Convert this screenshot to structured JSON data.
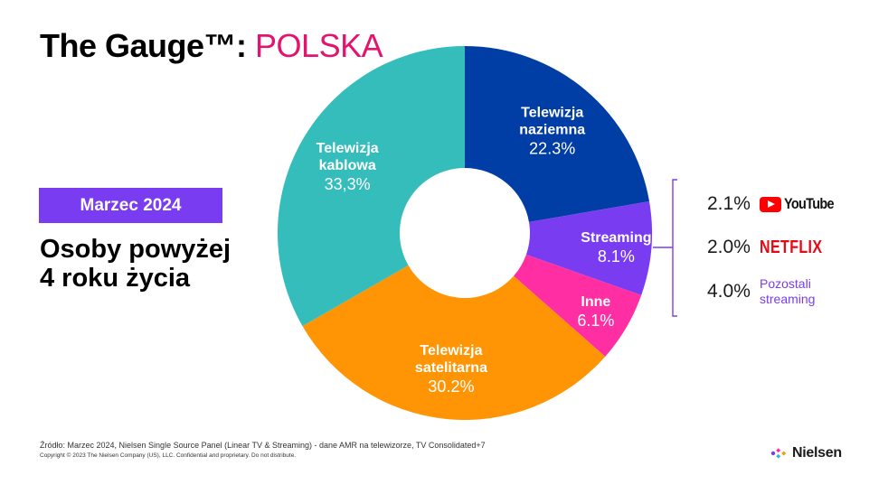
{
  "header": {
    "title_prefix": "The Gauge™:",
    "title_accent": "POLSKA"
  },
  "badge": {
    "label": "Marzec 2024"
  },
  "audience": {
    "line1": "Osoby powyżej",
    "line2": "4 roku życia"
  },
  "chart_data": {
    "type": "pie",
    "donut": true,
    "slices": [
      {
        "name_lines": [
          "Telewizja",
          "naziemna"
        ],
        "value": 22.3,
        "label": "22.3%",
        "color": "#003da5"
      },
      {
        "name_lines": [
          "Streaming"
        ],
        "value": 8.1,
        "label": "8.1%",
        "color": "#7a3cf0"
      },
      {
        "name_lines": [
          "Inne"
        ],
        "value": 6.1,
        "label": "6.1%",
        "color": "#ff2fa3"
      },
      {
        "name_lines": [
          "Telewizja",
          "satelitarna"
        ],
        "value": 30.2,
        "label": "30.2%",
        "color": "#ff9505"
      },
      {
        "name_lines": [
          "Telewizja",
          "kablowa"
        ],
        "value": 33.3,
        "label": "33,3%",
        "color": "#35bdbc"
      }
    ],
    "streaming_breakdown": [
      {
        "value": 2.1,
        "label": "2.1%",
        "brand": "YouTube",
        "brand_icon": "youtube-logo"
      },
      {
        "value": 2.0,
        "label": "2.0%",
        "brand": "NETFLIX",
        "brand_icon": "netflix-logo"
      },
      {
        "value": 4.0,
        "label": "4.0%",
        "brand": "Pozostali streaming",
        "brand_icon": ""
      }
    ]
  },
  "footer": {
    "source": "Źródło: Marzec 2024, Nielsen Single Source Panel (Linear TV & Streaming) - dane AMR na telewizorze, TV Consolidated+7",
    "copyright": "Copyright © 2023 The Nielsen Company (US), LLC. Confidential and proprietary. Do not distribute.",
    "logo_text": "Nielsen"
  }
}
